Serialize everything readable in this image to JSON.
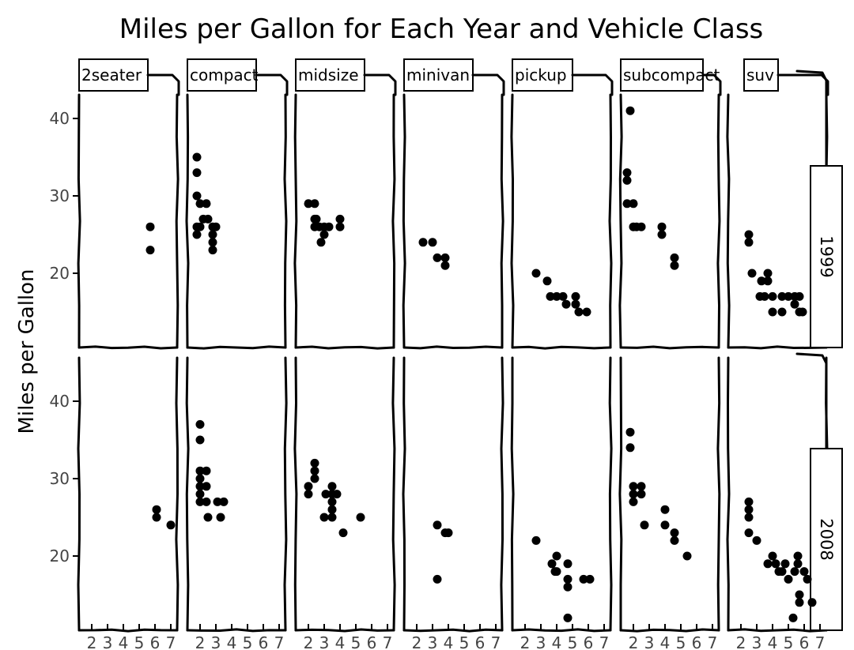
{
  "chart_data": {
    "type": "scatter",
    "title": "Miles per Gallon for Each Year and Vehicle Class",
    "xlabel": "",
    "ylabel": "Miles per Gallon",
    "xlim": [
      1.6,
      7.0
    ],
    "ylim": [
      11,
      45
    ],
    "x_ticks": [
      2,
      3,
      4,
      5,
      6,
      7
    ],
    "y_ticks": [
      20,
      30,
      40
    ],
    "grid": false,
    "legend": "none",
    "columns": [
      "2seater",
      "compact",
      "midsize",
      "minivan",
      "pickup",
      "subcompact",
      "suv"
    ],
    "rows": [
      "1999",
      "2008"
    ],
    "panels": [
      {
        "class": "2seater",
        "year": "1999",
        "points": [
          [
            5.7,
            26
          ],
          [
            5.7,
            23
          ]
        ]
      },
      {
        "class": "compact",
        "year": "1999",
        "points": [
          [
            1.8,
            35
          ],
          [
            1.8,
            33
          ],
          [
            1.8,
            30
          ],
          [
            2.0,
            29
          ],
          [
            2.4,
            29
          ],
          [
            2.2,
            27
          ],
          [
            2.5,
            27
          ],
          [
            1.8,
            26
          ],
          [
            2.0,
            26
          ],
          [
            2.8,
            26
          ],
          [
            3.0,
            26
          ],
          [
            1.8,
            25
          ],
          [
            2.8,
            25
          ],
          [
            2.8,
            24
          ],
          [
            2.8,
            23
          ]
        ]
      },
      {
        "class": "midsize",
        "year": "1999",
        "points": [
          [
            2.0,
            29
          ],
          [
            2.4,
            29
          ],
          [
            2.4,
            27
          ],
          [
            2.5,
            27
          ],
          [
            2.4,
            26
          ],
          [
            2.7,
            26
          ],
          [
            3.0,
            26
          ],
          [
            3.3,
            26
          ],
          [
            3.0,
            25
          ],
          [
            2.8,
            24
          ],
          [
            4.0,
            27
          ],
          [
            4.0,
            26
          ]
        ]
      },
      {
        "class": "minivan",
        "year": "1999",
        "points": [
          [
            2.4,
            24
          ],
          [
            3.0,
            24
          ],
          [
            3.3,
            22
          ],
          [
            3.8,
            22
          ],
          [
            3.8,
            21
          ]
        ]
      },
      {
        "class": "pickup",
        "year": "1999",
        "points": [
          [
            2.7,
            20
          ],
          [
            3.4,
            19
          ],
          [
            3.6,
            17
          ],
          [
            4.0,
            17
          ],
          [
            4.4,
            17
          ],
          [
            4.6,
            16
          ],
          [
            5.2,
            17
          ],
          [
            5.2,
            16
          ],
          [
            5.4,
            15
          ],
          [
            5.9,
            15
          ]
        ]
      },
      {
        "class": "subcompact",
        "year": "1999",
        "points": [
          [
            1.8,
            41
          ],
          [
            1.6,
            33
          ],
          [
            1.6,
            32
          ],
          [
            1.6,
            29
          ],
          [
            2.0,
            29
          ],
          [
            2.0,
            26
          ],
          [
            2.2,
            26
          ],
          [
            2.5,
            26
          ],
          [
            3.8,
            26
          ],
          [
            3.8,
            25
          ],
          [
            4.6,
            22
          ],
          [
            4.6,
            21
          ]
        ]
      },
      {
        "class": "suv",
        "year": "1999",
        "points": [
          [
            2.5,
            25
          ],
          [
            2.5,
            24
          ],
          [
            2.7,
            20
          ],
          [
            3.3,
            19
          ],
          [
            3.7,
            19
          ],
          [
            3.7,
            20
          ],
          [
            3.2,
            17
          ],
          [
            3.5,
            17
          ],
          [
            4.0,
            17
          ],
          [
            4.6,
            17
          ],
          [
            5.0,
            17
          ],
          [
            5.4,
            17
          ],
          [
            5.7,
            17
          ],
          [
            4.0,
            15
          ],
          [
            4.6,
            15
          ],
          [
            5.4,
            16
          ],
          [
            5.7,
            15
          ],
          [
            5.9,
            15
          ]
        ]
      },
      {
        "class": "2seater",
        "year": "2008",
        "points": [
          [
            6.1,
            26
          ],
          [
            6.1,
            25
          ],
          [
            7.0,
            24
          ]
        ]
      },
      {
        "class": "compact",
        "year": "2008",
        "points": [
          [
            2.0,
            37
          ],
          [
            2.0,
            35
          ],
          [
            2.0,
            31
          ],
          [
            2.4,
            31
          ],
          [
            2.0,
            30
          ],
          [
            2.0,
            29
          ],
          [
            2.4,
            29
          ],
          [
            2.0,
            28
          ],
          [
            2.0,
            27
          ],
          [
            2.4,
            27
          ],
          [
            3.1,
            27
          ],
          [
            3.5,
            27
          ],
          [
            2.5,
            25
          ],
          [
            3.3,
            25
          ]
        ]
      },
      {
        "class": "midsize",
        "year": "2008",
        "points": [
          [
            2.0,
            29
          ],
          [
            2.0,
            28
          ],
          [
            2.4,
            32
          ],
          [
            2.4,
            31
          ],
          [
            2.4,
            30
          ],
          [
            3.1,
            28
          ],
          [
            3.5,
            28
          ],
          [
            3.5,
            29
          ],
          [
            3.5,
            27
          ],
          [
            3.5,
            26
          ],
          [
            3.8,
            28
          ],
          [
            3.0,
            25
          ],
          [
            3.5,
            25
          ],
          [
            4.2,
            23
          ],
          [
            5.3,
            25
          ]
        ]
      },
      {
        "class": "minivan",
        "year": "2008",
        "points": [
          [
            3.3,
            24
          ],
          [
            3.8,
            23
          ],
          [
            4.0,
            23
          ],
          [
            3.3,
            17
          ]
        ]
      },
      {
        "class": "pickup",
        "year": "2008",
        "points": [
          [
            2.7,
            22
          ],
          [
            3.7,
            19
          ],
          [
            3.9,
            18
          ],
          [
            4.0,
            20
          ],
          [
            4.0,
            18
          ],
          [
            4.7,
            19
          ],
          [
            4.7,
            17
          ],
          [
            4.7,
            16
          ],
          [
            5.7,
            17
          ],
          [
            6.1,
            17
          ],
          [
            4.7,
            12
          ]
        ]
      },
      {
        "class": "subcompact",
        "year": "2008",
        "points": [
          [
            1.8,
            36
          ],
          [
            1.8,
            34
          ],
          [
            2.0,
            29
          ],
          [
            2.0,
            28
          ],
          [
            2.0,
            27
          ],
          [
            2.5,
            29
          ],
          [
            2.5,
            28
          ],
          [
            2.7,
            24
          ],
          [
            4.0,
            26
          ],
          [
            4.0,
            24
          ],
          [
            4.6,
            23
          ],
          [
            4.6,
            22
          ],
          [
            5.4,
            20
          ]
        ]
      },
      {
        "class": "suv",
        "year": "2008",
        "points": [
          [
            2.5,
            27
          ],
          [
            2.5,
            26
          ],
          [
            2.5,
            25
          ],
          [
            2.5,
            23
          ],
          [
            3.0,
            22
          ],
          [
            3.7,
            19
          ],
          [
            4.0,
            20
          ],
          [
            4.2,
            19
          ],
          [
            4.4,
            18
          ],
          [
            4.6,
            18
          ],
          [
            4.8,
            19
          ],
          [
            5.0,
            17
          ],
          [
            5.3,
            12
          ],
          [
            5.6,
            20
          ],
          [
            5.6,
            19
          ],
          [
            5.4,
            18
          ],
          [
            5.7,
            15
          ],
          [
            5.7,
            14
          ],
          [
            6.0,
            18
          ],
          [
            6.2,
            17
          ],
          [
            6.5,
            14
          ]
        ]
      }
    ]
  }
}
